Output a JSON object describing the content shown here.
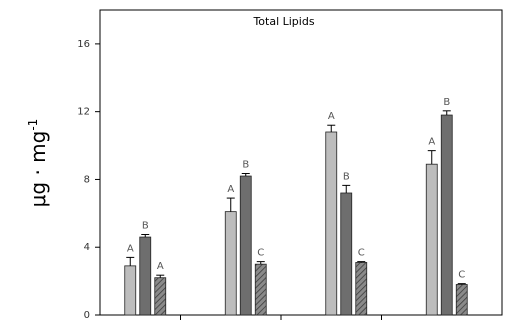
{
  "chart_data": {
    "type": "bar",
    "title": "Total Lipids",
    "ylabel": "μg · mg",
    "ylabel_superscript": "-1",
    "xlabel": "",
    "ylim": [
      0,
      18
    ],
    "yticks": [
      0,
      4,
      8,
      12,
      16
    ],
    "grid": false,
    "legend": "none",
    "groups": 4,
    "series": [
      {
        "name": "",
        "style": "light-gray",
        "color": "#bdbdbd",
        "values": [
          2.9,
          6.1,
          10.8,
          8.9
        ],
        "errors": [
          0.5,
          0.8,
          0.4,
          0.8
        ],
        "letters": [
          "A",
          "A",
          "A",
          "A"
        ]
      },
      {
        "name": "",
        "style": "dark-gray",
        "color": "#6e6e6e",
        "values": [
          4.6,
          8.2,
          7.2,
          11.8
        ],
        "errors": [
          0.15,
          0.15,
          0.45,
          0.25
        ],
        "letters": [
          "B",
          "B",
          "B",
          "B"
        ]
      },
      {
        "name": "",
        "style": "hatched",
        "color": "#6e6e6e",
        "values": [
          2.2,
          3.0,
          3.1,
          1.8
        ],
        "errors": [
          0.15,
          0.15,
          0.05,
          0.05
        ],
        "letters": [
          "A",
          "C",
          "C",
          "C"
        ]
      }
    ]
  }
}
